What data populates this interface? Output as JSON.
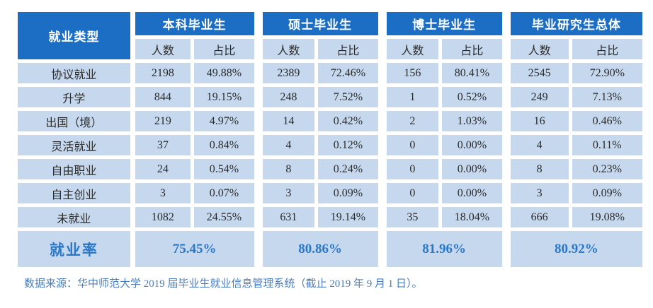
{
  "table": {
    "type_header": "就业类型",
    "subheader": {
      "count": "人数",
      "ratio": "占比"
    },
    "groups": [
      {
        "label": "本科毕业生"
      },
      {
        "label": "硕士毕业生"
      },
      {
        "label": "博士毕业生"
      },
      {
        "label": "毕业研究生总体"
      }
    ],
    "rows": [
      {
        "label": "协议就业",
        "values": [
          "2198",
          "49.88%",
          "2389",
          "72.46%",
          "156",
          "80.41%",
          "2545",
          "72.90%"
        ]
      },
      {
        "label": "升学",
        "values": [
          "844",
          "19.15%",
          "248",
          "7.52%",
          "1",
          "0.52%",
          "249",
          "7.13%"
        ]
      },
      {
        "label": "出国（境）",
        "values": [
          "219",
          "4.97%",
          "14",
          "0.42%",
          "2",
          "1.03%",
          "16",
          "0.46%"
        ]
      },
      {
        "label": "灵活就业",
        "values": [
          "37",
          "0.84%",
          "4",
          "0.12%",
          "0",
          "0.00%",
          "4",
          "0.11%"
        ]
      },
      {
        "label": "自由职业",
        "values": [
          "24",
          "0.54%",
          "8",
          "0.24%",
          "0",
          "0.00%",
          "8",
          "0.23%"
        ]
      },
      {
        "label": "自主创业",
        "values": [
          "3",
          "0.07%",
          "3",
          "0.09%",
          "0",
          "0.00%",
          "3",
          "0.09%"
        ]
      },
      {
        "label": "未就业",
        "values": [
          "1082",
          "24.55%",
          "631",
          "19.14%",
          "35",
          "18.04%",
          "666",
          "19.08%"
        ]
      }
    ],
    "rate_row": {
      "label": "就业率",
      "values": [
        "75.45%",
        "80.86%",
        "81.96%",
        "80.92%"
      ]
    }
  },
  "footer": {
    "source_note": "数据来源：华中师范大学 2019 届毕业生就业信息管理系统（截止 2019 年 9 月 1 日）。"
  },
  "colors": {
    "header_bg": "#1b6ec4",
    "cell_bg": "#c6d8ee",
    "rate_text": "#2a78c8",
    "source_text": "#4a7dbd",
    "data_text": "#2b2b2b"
  }
}
